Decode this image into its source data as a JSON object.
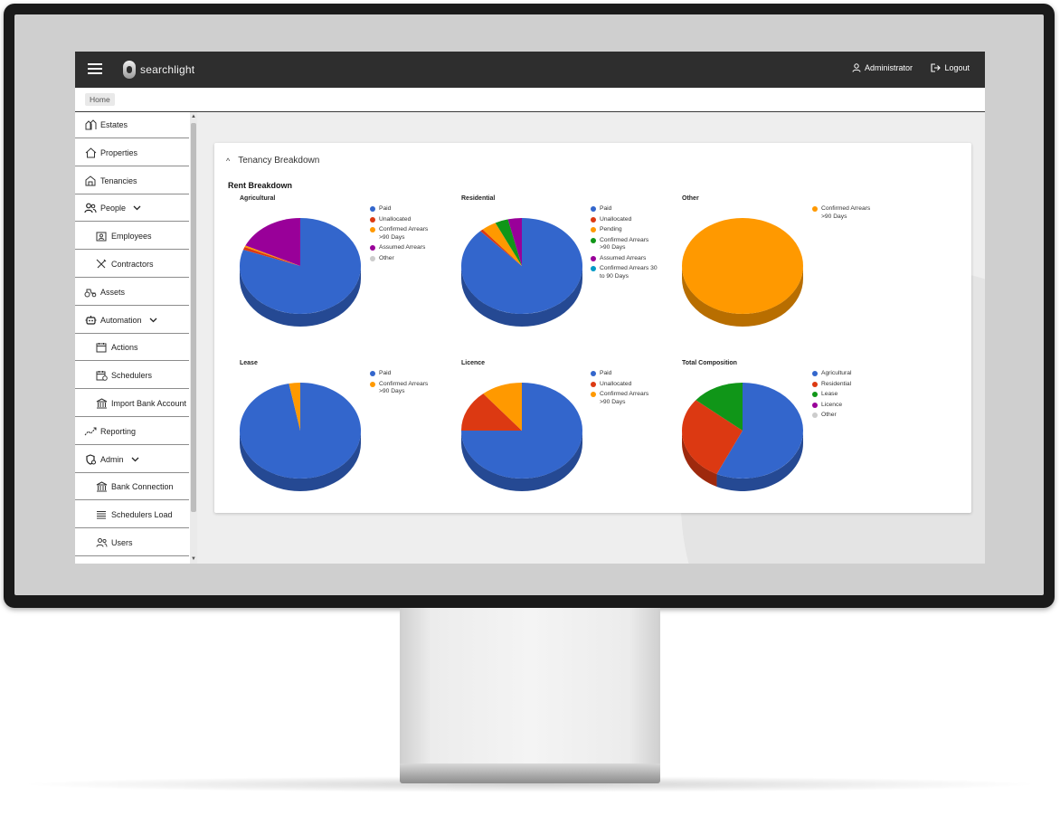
{
  "header": {
    "logo_text": "searchlight",
    "user_label": "Administrator",
    "logout_label": "Logout"
  },
  "breadcrumb": {
    "home": "Home"
  },
  "sidebar": {
    "items": [
      {
        "label": "Estates",
        "icon": "estates-icon",
        "sub": false,
        "chevron": false
      },
      {
        "label": "Properties",
        "icon": "house-icon",
        "sub": false,
        "chevron": false
      },
      {
        "label": "Tenancies",
        "icon": "tenancy-icon",
        "sub": false,
        "chevron": false
      },
      {
        "label": "People",
        "icon": "people-icon",
        "sub": false,
        "chevron": true
      },
      {
        "label": "Employees",
        "icon": "employee-icon",
        "sub": true,
        "chevron": false
      },
      {
        "label": "Contractors",
        "icon": "tools-icon",
        "sub": true,
        "chevron": false
      },
      {
        "label": "Assets",
        "icon": "tractor-icon",
        "sub": false,
        "chevron": false
      },
      {
        "label": "Automation",
        "icon": "robot-icon",
        "sub": false,
        "chevron": true
      },
      {
        "label": "Actions",
        "icon": "calendar-icon",
        "sub": true,
        "chevron": false
      },
      {
        "label": "Schedulers",
        "icon": "calendar-clock-icon",
        "sub": true,
        "chevron": false
      },
      {
        "label": "Import Bank Account",
        "icon": "bank-icon",
        "sub": true,
        "chevron": false
      },
      {
        "label": "Reporting",
        "icon": "trend-icon",
        "sub": false,
        "chevron": false
      },
      {
        "label": "Admin",
        "icon": "admin-gear-icon",
        "sub": false,
        "chevron": true
      },
      {
        "label": "Bank Connection",
        "icon": "bank-icon",
        "sub": true,
        "chevron": false
      },
      {
        "label": "Schedulers Load",
        "icon": "list-icon",
        "sub": true,
        "chevron": false
      },
      {
        "label": "Users",
        "icon": "users-icon",
        "sub": true,
        "chevron": false
      }
    ]
  },
  "card": {
    "title": "Tenancy Breakdown",
    "section_title": "Rent Breakdown"
  },
  "colors": {
    "paid": "#3366cc",
    "unallocated": "#dc3912",
    "orange": "#ff9900",
    "green": "#109618",
    "purple": "#990099",
    "teal": "#0099c6",
    "grey": "#cccccc"
  },
  "chart_data": [
    {
      "type": "pie",
      "title": "Agricultural",
      "legend": [
        {
          "name": "Paid",
          "color": "#3366cc"
        },
        {
          "name": "Unallocated",
          "color": "#dc3912"
        },
        {
          "name": "Confirmed Arrears >90 Days",
          "color": "#ff9900"
        },
        {
          "name": "Assumed Arrears",
          "color": "#990099"
        },
        {
          "name": "Other",
          "color": "#cccccc"
        }
      ],
      "slices": [
        {
          "name": "Paid",
          "value": 80.5,
          "color": "#3366cc"
        },
        {
          "name": "Unallocated",
          "value": 1.0,
          "color": "#dc3912"
        },
        {
          "name": "Confirmed Arrears >90 Days",
          "value": 0.5,
          "color": "#ff9900"
        },
        {
          "name": "Assumed Arrears",
          "value": 18.0,
          "color": "#990099"
        }
      ]
    },
    {
      "type": "pie",
      "title": "Residential",
      "legend": [
        {
          "name": "Paid",
          "color": "#3366cc"
        },
        {
          "name": "Unallocated",
          "color": "#dc3912"
        },
        {
          "name": "Pending",
          "color": "#ff9900"
        },
        {
          "name": "Confirmed Arrears >90 Days",
          "color": "#109618"
        },
        {
          "name": "Assumed Arrears",
          "color": "#990099"
        },
        {
          "name": "Confirmed Arrears 30 to 90 Days",
          "color": "#0099c6"
        }
      ],
      "slices": [
        {
          "name": "Paid",
          "value": 88.0,
          "color": "#3366cc"
        },
        {
          "name": "Unallocated",
          "value": 0.8,
          "color": "#dc3912"
        },
        {
          "name": "Pending",
          "value": 4.0,
          "color": "#ff9900"
        },
        {
          "name": "Confirmed Arrears >90 Days",
          "value": 3.5,
          "color": "#109618"
        },
        {
          "name": "Assumed Arrears",
          "value": 3.7,
          "color": "#990099"
        }
      ]
    },
    {
      "type": "pie",
      "title": "Other",
      "legend": [
        {
          "name": "Confirmed Arrears >90 Days",
          "color": "#ff9900"
        }
      ],
      "slices": [
        {
          "name": "Confirmed Arrears >90 Days",
          "value": 100,
          "color": "#ff9900"
        }
      ]
    },
    {
      "type": "pie",
      "title": "Lease",
      "legend": [
        {
          "name": "Paid",
          "color": "#3366cc"
        },
        {
          "name": "Confirmed Arrears >90 Days",
          "color": "#ff9900"
        }
      ],
      "slices": [
        {
          "name": "Paid",
          "value": 97.0,
          "color": "#3366cc"
        },
        {
          "name": "Confirmed Arrears >90 Days",
          "value": 3.0,
          "color": "#ff9900"
        }
      ]
    },
    {
      "type": "pie",
      "title": "Licence",
      "legend": [
        {
          "name": "Paid",
          "color": "#3366cc"
        },
        {
          "name": "Unallocated",
          "color": "#dc3912"
        },
        {
          "name": "Confirmed Arrears >90 Days",
          "color": "#ff9900"
        }
      ],
      "slices": [
        {
          "name": "Paid",
          "value": 75.0,
          "color": "#3366cc"
        },
        {
          "name": "Unallocated",
          "value": 14.0,
          "color": "#dc3912"
        },
        {
          "name": "Confirmed Arrears >90 Days",
          "value": 11.0,
          "color": "#ff9900"
        }
      ]
    },
    {
      "type": "pie",
      "title": "Total Composition",
      "legend": [
        {
          "name": "Agricultural",
          "color": "#3366cc"
        },
        {
          "name": "Residential",
          "color": "#dc3912"
        },
        {
          "name": "Lease",
          "color": "#109618"
        },
        {
          "name": "Licence",
          "color": "#990099"
        },
        {
          "name": "Other",
          "color": "#cccccc"
        }
      ],
      "slices": [
        {
          "name": "Agricultural",
          "value": 57.0,
          "color": "#3366cc"
        },
        {
          "name": "Residential",
          "value": 29.0,
          "color": "#dc3912"
        },
        {
          "name": "Lease",
          "value": 14.0,
          "color": "#109618"
        }
      ]
    }
  ]
}
